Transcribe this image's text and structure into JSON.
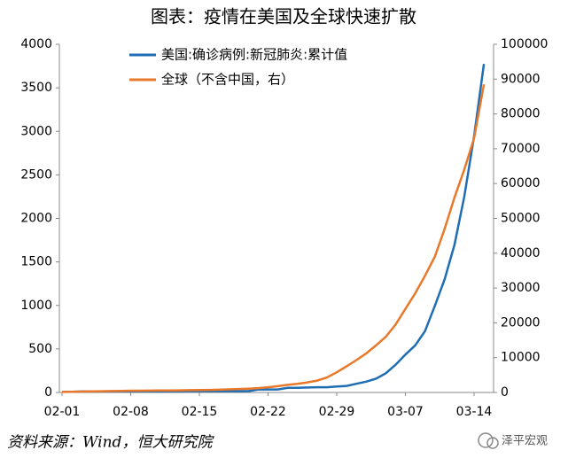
{
  "chart_data": {
    "type": "line",
    "title": "图表：疫情在美国及全球快速扩散",
    "source": "资料来源：Wind，恒大研究院",
    "watermark": "泽平宏观",
    "categories": [
      "02-01",
      null,
      null,
      null,
      null,
      null,
      null,
      "02-08",
      null,
      null,
      null,
      null,
      null,
      null,
      "02-15",
      null,
      null,
      null,
      null,
      null,
      null,
      "02-22",
      null,
      null,
      null,
      null,
      null,
      null,
      "02-29",
      null,
      null,
      null,
      null,
      null,
      null,
      "03-07",
      null,
      null,
      null,
      null,
      null,
      null,
      "03-14",
      null
    ],
    "series": [
      {
        "name": "美国:确诊病例:新冠肺炎:累计值",
        "color": "#1f6db3",
        "axis": "y",
        "values": [
          8,
          8,
          11,
          11,
          12,
          12,
          12,
          12,
          12,
          13,
          13,
          14,
          14,
          15,
          15,
          15,
          15,
          15,
          15,
          15,
          35,
          35,
          35,
          53,
          53,
          57,
          60,
          60,
          68,
          75,
          100,
          124,
          158,
          221,
          319,
          435,
          541,
          704,
          994,
          1301,
          1697,
          2247,
          2943,
          3774
        ]
      },
      {
        "name": "全球（不含中国，右）",
        "color": "#e8792a",
        "axis": "y2",
        "values": [
          150,
          200,
          250,
          300,
          350,
          400,
          450,
          500,
          520,
          540,
          560,
          580,
          600,
          650,
          700,
          750,
          800,
          900,
          1000,
          1100,
          1250,
          1500,
          1800,
          2200,
          2500,
          2900,
          3400,
          4300,
          5800,
          7500,
          9300,
          11200,
          13500,
          16000,
          19500,
          24000,
          28500,
          33500,
          39000,
          47000,
          56000,
          64000,
          73000,
          88500
        ]
      }
    ],
    "ylim": [
      0,
      4000
    ],
    "yticks": [
      0,
      500,
      1000,
      1500,
      2000,
      2500,
      3000,
      3500,
      4000
    ],
    "y2lim": [
      0,
      100000
    ],
    "y2ticks": [
      0,
      10000,
      20000,
      30000,
      40000,
      50000,
      60000,
      70000,
      80000,
      90000,
      100000
    ],
    "grid": false
  }
}
